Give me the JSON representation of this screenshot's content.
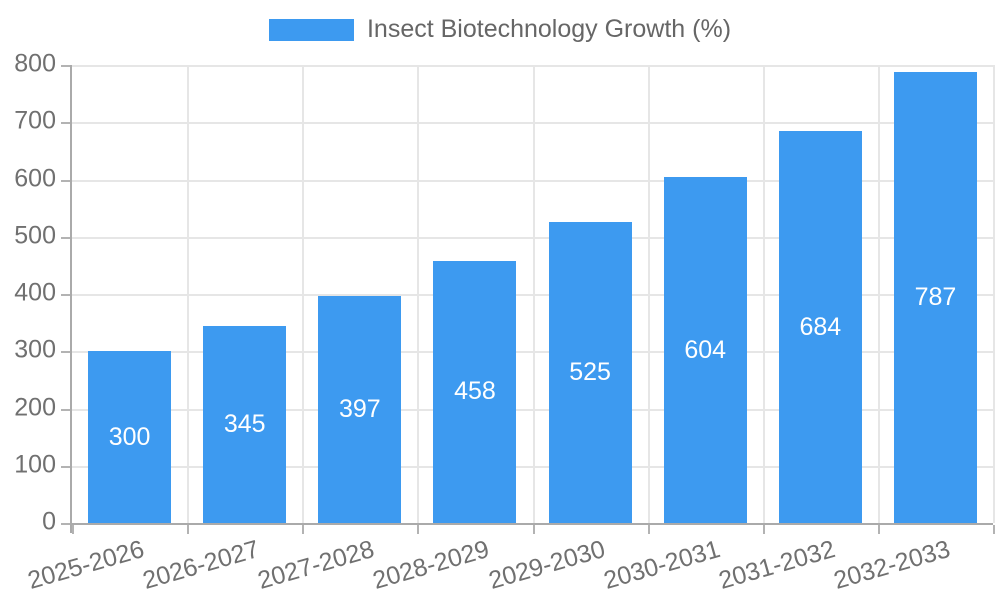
{
  "chart_data": {
    "type": "bar",
    "legend_label": "Insect Biotechnology Growth (%)",
    "categories": [
      "2025-2026",
      "2026-2027",
      "2027-2028",
      "2028-2029",
      "2029-2030",
      "2030-2031",
      "2031-2032",
      "2032-2033"
    ],
    "values": [
      300,
      345,
      397,
      458,
      525,
      604,
      684,
      787
    ],
    "value_labels": [
      "300",
      "345",
      "397",
      "458",
      "525",
      "604",
      "684",
      "787"
    ],
    "y_tick_labels": [
      "0",
      "100",
      "200",
      "300",
      "400",
      "500",
      "600",
      "700",
      "800"
    ],
    "ylim": [
      0,
      800
    ],
    "ytick_step": 100,
    "xlabel": "",
    "ylabel": "",
    "grid": true,
    "legend_position": "top-center",
    "bar_color": "#3d9af0",
    "bar_label_color": "#ffffff",
    "gridline_color": "#e6e6e6",
    "axis_color": "#aaaaaa",
    "tick_text_color": "#707070",
    "legend_text_color": "#666666"
  }
}
